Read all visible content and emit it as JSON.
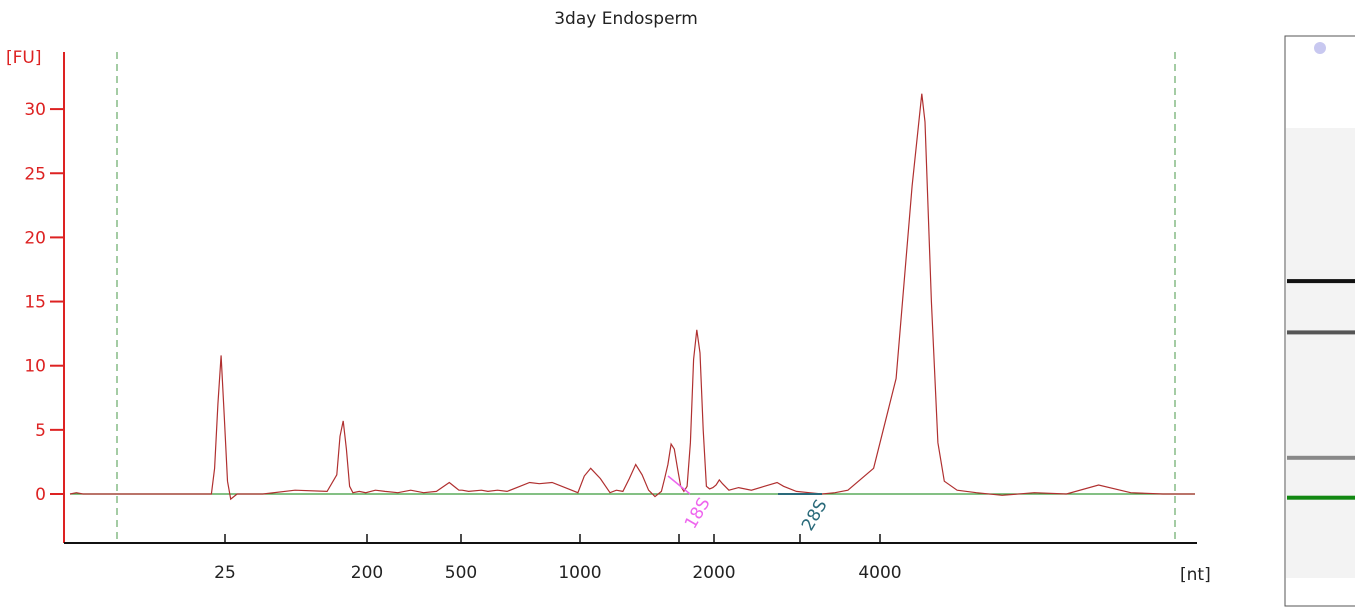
{
  "chart_data": {
    "type": "line",
    "title": "3day Endosperm",
    "ylabel": "[FU]",
    "xlabel": "[nt]",
    "ylim": [
      -3.5,
      34
    ],
    "yticks": [
      0,
      5,
      10,
      15,
      20,
      25,
      30
    ],
    "xticks": [
      "25",
      "200",
      "500",
      "1000",
      "2000",
      "4000"
    ],
    "series": [
      {
        "color": "#b03030",
        "x": [
          0,
          2,
          4,
          6,
          8,
          14,
          30,
          44,
          45,
          46,
          47,
          48,
          49,
          50,
          52,
          60,
          70,
          80,
          83,
          84,
          85,
          86,
          87,
          88,
          90,
          92,
          95,
          98,
          102,
          106,
          110,
          114,
          118,
          120,
          121,
          122,
          124,
          128,
          130,
          133,
          136,
          140,
          143,
          146,
          150,
          154,
          158,
          160,
          162,
          165,
          168,
          170,
          172,
          174,
          176,
          178,
          180,
          182,
          184,
          185,
          186,
          187,
          188,
          189,
          190,
          191,
          192,
          193,
          194,
          195,
          196,
          197,
          198,
          199,
          200,
          201,
          202,
          203,
          205,
          208,
          212,
          216,
          220,
          222,
          226,
          230,
          234,
          238,
          242,
          250,
          257,
          262,
          265,
          266,
          268,
          270,
          272,
          276,
          282,
          290,
          300,
          310,
          320,
          330,
          340,
          350
        ],
        "values": [
          0,
          0.1,
          0,
          0,
          0,
          0,
          0,
          0,
          2,
          7,
          10.8,
          6,
          1,
          -0.4,
          0,
          0,
          0.3,
          0.2,
          1.5,
          4.5,
          5.7,
          3.5,
          0.6,
          0.1,
          0.2,
          0.1,
          0.3,
          0.2,
          0.1,
          0.3,
          0.1,
          0.2,
          0.9,
          0.5,
          0.3,
          0.3,
          0.2,
          0.3,
          0.2,
          0.3,
          0.2,
          0.6,
          0.9,
          0.8,
          0.9,
          0.5,
          0.1,
          1.4,
          2.0,
          1.2,
          0.1,
          0.3,
          0.2,
          1.2,
          2.3,
          1.5,
          0.3,
          -0.2,
          0.2,
          1.2,
          2.3,
          3.9,
          3.5,
          2.0,
          0.6,
          0.2,
          0.6,
          4.0,
          10.5,
          12.8,
          11.0,
          5.0,
          0.6,
          0.4,
          0.5,
          0.7,
          1.1,
          0.8,
          0.3,
          0.5,
          0.3,
          0.6,
          0.9,
          0.6,
          0.2,
          0.1,
          0,
          0.1,
          0.3,
          2.0,
          9.0,
          24,
          31.2,
          29,
          15,
          4,
          1.0,
          0.3,
          0.1,
          -0.1,
          0.1,
          0,
          0.7,
          0.1,
          0,
          0
        ]
      },
      {
        "color": "#3a9a3a",
        "x": [
          0,
          350
        ],
        "values": [
          0,
          0
        ]
      }
    ],
    "annotations": [
      "18S",
      "28S"
    ]
  },
  "gel": {
    "bands": [
      {
        "level": 0.43,
        "shade": "#111111"
      },
      {
        "level": 0.52,
        "shade": "#555555"
      },
      {
        "level": 0.74,
        "shade": "#888888"
      },
      {
        "level": 0.81,
        "shade": "#118811"
      }
    ]
  }
}
